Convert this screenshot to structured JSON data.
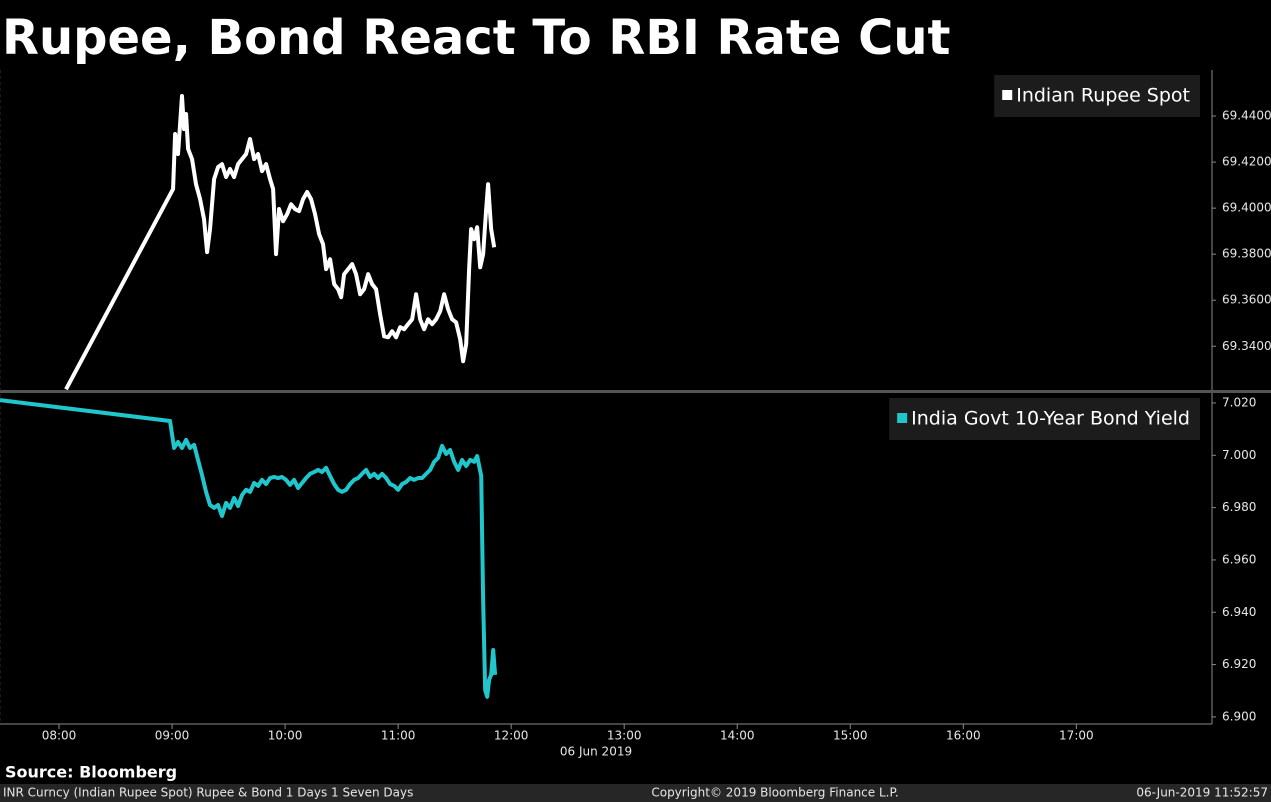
{
  "title": "Rupee, Bond React To RBI Rate Cut",
  "chart_data": [
    {
      "type": "line",
      "x": [
        8.062,
        9.009,
        9.027,
        9.053,
        9.088,
        9.106,
        9.124,
        9.142,
        9.177,
        9.212,
        9.248,
        9.283,
        9.31,
        9.336,
        9.372,
        9.407,
        9.442,
        9.478,
        9.513,
        9.549,
        9.584,
        9.619,
        9.655,
        9.69,
        9.726,
        9.761,
        9.796,
        9.832,
        9.867,
        9.894,
        9.92,
        9.947,
        9.982,
        10.018,
        10.053,
        10.088,
        10.124,
        10.159,
        10.195,
        10.23,
        10.265,
        10.301,
        10.336,
        10.363,
        10.398,
        10.434,
        10.469,
        10.496,
        10.522,
        10.558,
        10.593,
        10.628,
        10.664,
        10.699,
        10.735,
        10.77,
        10.805,
        10.841,
        10.876,
        10.912,
        10.947,
        10.982,
        11.018,
        11.053,
        11.088,
        11.124,
        11.159,
        11.195,
        11.23,
        11.265,
        11.301,
        11.336,
        11.372,
        11.407,
        11.442,
        11.478,
        11.513,
        11.549,
        11.575,
        11.602,
        11.628,
        11.646,
        11.673,
        11.699,
        11.726,
        11.752,
        11.779,
        11.796,
        11.823,
        11.85
      ],
      "series": [
        {
          "name": "Indian Rupee Spot",
          "color": "#ffffff",
          "values": [
            69.3213,
            69.4083,
            69.4322,
            69.4235,
            69.4487,
            69.4343,
            69.4409,
            69.4257,
            69.4213,
            69.4104,
            69.4039,
            69.3952,
            69.3809,
            69.3909,
            69.4126,
            69.4178,
            69.4191,
            69.4135,
            69.417,
            69.4135,
            69.4191,
            69.4213,
            69.4235,
            69.43,
            69.4213,
            69.4235,
            69.4161,
            69.4191,
            69.4126,
            69.4083,
            69.38,
            69.3996,
            69.3943,
            69.3974,
            69.4017,
            69.3996,
            69.3987,
            69.4039,
            69.407,
            69.4039,
            69.3974,
            69.3887,
            69.3843,
            69.3735,
            69.3778,
            69.367,
            69.3648,
            69.3613,
            69.3713,
            69.3735,
            69.3757,
            69.3713,
            69.3626,
            69.3648,
            69.3713,
            69.367,
            69.3648,
            69.3539,
            69.3443,
            69.3439,
            69.3465,
            69.3439,
            69.3483,
            69.3474,
            69.3496,
            69.3517,
            69.3626,
            69.3517,
            69.3474,
            69.3517,
            69.3496,
            69.3517,
            69.3552,
            69.3626,
            69.3561,
            69.3517,
            69.3504,
            69.343,
            69.3335,
            69.3409,
            69.3735,
            69.3909,
            69.3865,
            69.3917,
            69.3743,
            69.38,
            69.3996,
            69.4104,
            69.3909,
            69.383
          ]
        }
      ],
      "xlim": [
        7.478,
        18.2
      ],
      "ylim": [
        69.321,
        69.46
      ],
      "yticks": [
        {
          "value": 69.34,
          "label": "69.3400"
        },
        {
          "value": 69.36,
          "label": "69.3600"
        },
        {
          "value": 69.38,
          "label": "69.3800"
        },
        {
          "value": 69.4,
          "label": "69.4000"
        },
        {
          "value": 69.42,
          "label": "69.4200"
        },
        {
          "value": 69.44,
          "label": "69.4400"
        }
      ],
      "legend": "upper right"
    },
    {
      "type": "line",
      "x": [
        7.478,
        8.982,
        9.018,
        9.053,
        9.088,
        9.124,
        9.159,
        9.195,
        9.23,
        9.265,
        9.301,
        9.336,
        9.372,
        9.407,
        9.442,
        9.478,
        9.513,
        9.549,
        9.584,
        9.619,
        9.655,
        9.69,
        9.726,
        9.761,
        9.796,
        9.832,
        9.867,
        9.903,
        9.938,
        9.973,
        10.009,
        10.044,
        10.08,
        10.115,
        10.15,
        10.186,
        10.221,
        10.257,
        10.292,
        10.327,
        10.363,
        10.398,
        10.434,
        10.469,
        10.504,
        10.54,
        10.575,
        10.611,
        10.646,
        10.681,
        10.717,
        10.752,
        10.788,
        10.823,
        10.858,
        10.894,
        10.929,
        10.965,
        11.0,
        11.035,
        11.071,
        11.106,
        11.142,
        11.177,
        11.212,
        11.248,
        11.283,
        11.319,
        11.354,
        11.389,
        11.425,
        11.46,
        11.496,
        11.531,
        11.566,
        11.602,
        11.637,
        11.673,
        11.699,
        11.735,
        11.752,
        11.77,
        11.788,
        11.805,
        11.823,
        11.841,
        11.858
      ],
      "series": [
        {
          "name": "India Govt 10-Year Bond Yield",
          "color": "#1fc7cc",
          "values": [
            7.0211,
            7.0131,
            7.0028,
            7.0051,
            7.0028,
            7.0059,
            7.0028,
            7.004,
            6.9982,
            6.9925,
            6.986,
            6.981,
            6.9799,
            6.981,
            6.9768,
            6.9818,
            6.9799,
            6.9837,
            6.9806,
            6.9848,
            6.9868,
            6.986,
            6.9894,
            6.9883,
            6.9906,
            6.989,
            6.9913,
            6.9917,
            6.9913,
            6.9917,
            6.9906,
            6.9887,
            6.9906,
            6.9875,
            6.9894,
            6.9913,
            6.9929,
            6.9936,
            6.9944,
            6.9936,
            6.9952,
            6.9921,
            6.989,
            6.9868,
            6.986,
            6.9868,
            6.989,
            6.9906,
            6.9913,
            6.9929,
            6.9944,
            6.9917,
            6.9929,
            6.9913,
            6.9929,
            6.9913,
            6.989,
            6.9883,
            6.9868,
            6.989,
            6.9898,
            6.9913,
            6.9906,
            6.9913,
            6.9913,
            6.9929,
            6.9944,
            6.9975,
            6.999,
            7.0036,
            7.0005,
            7.002,
            6.9975,
            6.9944,
            6.9982,
            6.9959,
            6.9982,
            6.9975,
            6.9997,
            6.9921,
            6.9447,
            6.9103,
            6.9077,
            6.9142,
            6.9161,
            6.9256,
            6.9161
          ]
        }
      ],
      "xlim": [
        7.478,
        18.2
      ],
      "xticks": [
        {
          "value": 8,
          "label": "08:00"
        },
        {
          "value": 9,
          "label": "09:00"
        },
        {
          "value": 10,
          "label": "10:00"
        },
        {
          "value": 11,
          "label": "11:00"
        },
        {
          "value": 12,
          "label": "12:00"
        },
        {
          "value": 13,
          "label": "13:00"
        },
        {
          "value": 14,
          "label": "14:00"
        },
        {
          "value": 15,
          "label": "15:00"
        },
        {
          "value": 16,
          "label": "16:00"
        },
        {
          "value": 17,
          "label": "17:00"
        }
      ],
      "xlabel": "06 Jun 2019",
      "ylim": [
        6.8973,
        7.0238
      ],
      "yticks": [
        {
          "value": 6.9,
          "label": "6.900"
        },
        {
          "value": 6.92,
          "label": "6.920"
        },
        {
          "value": 6.94,
          "label": "6.940"
        },
        {
          "value": 6.96,
          "label": "6.960"
        },
        {
          "value": 6.98,
          "label": "6.980"
        },
        {
          "value": 7.0,
          "label": "7.000"
        },
        {
          "value": 7.02,
          "label": "7.020"
        }
      ],
      "legend": "upper right"
    }
  ],
  "source": "Source: Bloomberg",
  "footer": {
    "left": "INR Curncy (Indian Rupee Spot) Rupee & Bond 1 Days 1 Seven Days",
    "center": "Copyright© 2019 Bloomberg Finance L.P.",
    "right": "06-Jun-2019 11:52:57"
  }
}
